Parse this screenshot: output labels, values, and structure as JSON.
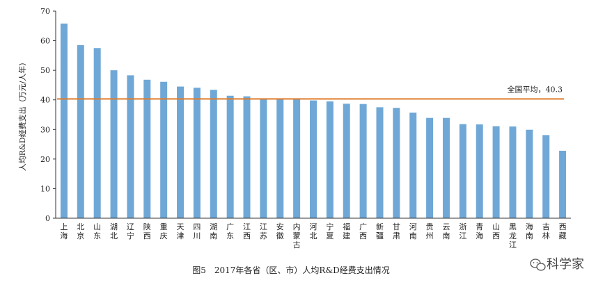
{
  "chart_data": {
    "type": "bar",
    "title": "图5　2017年各省（区、市）人均R&D经费支出情况",
    "ylabel": "人均R&D经费支出（万元/人年）",
    "xlabel": "",
    "ylim": [
      0,
      70
    ],
    "yticks": [
      0,
      10,
      20,
      30,
      40,
      50,
      60,
      70
    ],
    "grid": false,
    "bar_color": "#6fa8d6",
    "reference_line": {
      "value": 40.3,
      "label": "全国平均，40.3",
      "color": "#e07b2a"
    },
    "categories": [
      "上海",
      "北京",
      "山东",
      "湖北",
      "辽宁",
      "陕西",
      "重庆",
      "天津",
      "四川",
      "湖南",
      "广东",
      "江西",
      "江苏",
      "安徽",
      "内蒙古",
      "河北",
      "宁夏",
      "福建",
      "广西",
      "新疆",
      "甘肃",
      "河南",
      "贵州",
      "云南",
      "浙江",
      "青海",
      "山西",
      "黑龙江",
      "海南",
      "吉林",
      "西藏"
    ],
    "values": [
      65.8,
      58.5,
      57.5,
      50.0,
      48.3,
      46.8,
      46.1,
      44.5,
      44.1,
      43.4,
      41.4,
      41.2,
      40.3,
      40.2,
      40.2,
      39.8,
      39.5,
      38.7,
      38.6,
      37.5,
      37.3,
      35.7,
      33.9,
      33.9,
      31.8,
      31.7,
      31.1,
      31.0,
      29.9,
      28.1,
      22.8
    ]
  },
  "watermark": {
    "text": "科学家",
    "icon": "wechat-icon"
  }
}
